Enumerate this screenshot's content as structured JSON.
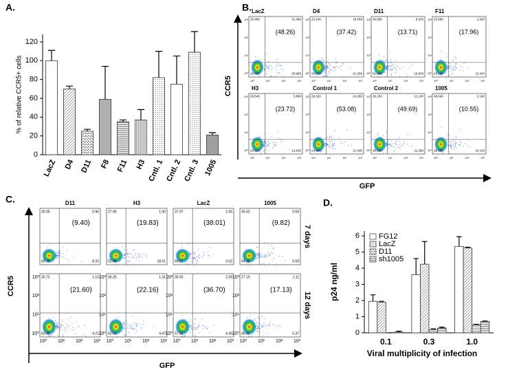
{
  "chart_data": [
    {
      "type": "bar",
      "title": "A.",
      "y_label": "% of relative CCR5+ cells",
      "categories": [
        "LacZ",
        "D4",
        "D11",
        "F8",
        "F11",
        "H3",
        "Cntl. 1",
        "Cntl. 2",
        "Cntl. 3",
        "1005"
      ],
      "values": [
        100,
        70,
        25,
        59,
        35,
        37,
        82,
        75,
        109,
        21
      ],
      "errors": [
        11,
        3,
        2,
        35,
        2,
        11,
        28,
        30,
        22,
        2.5
      ],
      "fills": [
        "#ffffff",
        "diag",
        "wave",
        "#b0b0b0",
        "hlines",
        "vlines",
        "dots",
        "#ffffff",
        "dots",
        "#a0a0a0"
      ],
      "ylim": [
        0,
        128
      ],
      "yticks": [
        0,
        20,
        40,
        60,
        80,
        100,
        120
      ]
    },
    {
      "type": "grouped-bar",
      "title": "D.",
      "y_label": "p24 ng/ml",
      "x_label": "Viral multiplicity of  infection",
      "categories": [
        "0.1",
        "0.3",
        "1.0"
      ],
      "series": [
        {
          "name": "FG12",
          "fill": "#ffffff",
          "values": [
            1.95,
            3.6,
            5.35
          ],
          "errors": [
            0.4,
            1.0,
            0.6
          ]
        },
        {
          "name": "LacZ",
          "fill": "diag",
          "values": [
            1.9,
            4.25,
            5.25
          ],
          "errors": [
            0.05,
            1.4,
            0.05
          ]
        },
        {
          "name": "D11",
          "fill": "wave",
          "values": [
            0,
            0.2,
            0.5
          ],
          "errors": [
            0,
            0.05,
            0.03
          ]
        },
        {
          "name": "sh1005",
          "fill": "hlines",
          "values": [
            0.05,
            0.3,
            0.7
          ],
          "errors": [
            0.05,
            0.05,
            0.03
          ]
        }
      ],
      "ylim": [
        0,
        6.3
      ],
      "yticks": [
        0,
        1,
        2,
        3,
        4,
        5,
        6
      ],
      "legend": "top-left"
    }
  ],
  "flow_panels": [
    {
      "title": "B.",
      "y_label": "CCR5",
      "x_label": "GFP",
      "tick_labels": [
        "10⁰",
        "10¹",
        "10²",
        "10³"
      ],
      "plots": [
        {
          "name": "LacZ",
          "percent": "(48.26)",
          "corners": [
            "15.480",
            "31.480",
            "18.480",
            "33.980"
          ]
        },
        {
          "name": "D4",
          "percent": "(37.42)",
          "corners": [
            "23.240",
            "18.669",
            "26.830",
            "31.269"
          ]
        },
        {
          "name": "D11",
          "percent": "(13.71)",
          "corners": [
            "26.580",
            "5.933",
            "51.940",
            "15.603"
          ]
        },
        {
          "name": "F11",
          "percent": "(17.96)",
          "corners": [
            "33.580",
            "2.920",
            "63.280",
            "13.340"
          ]
        },
        {
          "name": "H3",
          "percent": "(23.72)",
          "corners": [
            "28.540",
            "3.880",
            "43.620",
            "13.600"
          ]
        },
        {
          "name": "Control 1",
          "percent": "(53.08)",
          "corners": [
            "29.320",
            "24.280",
            "24.940",
            "21.400"
          ]
        },
        {
          "name": "Control 2",
          "percent": "(49.69)",
          "corners": [
            "28.200",
            "11.140",
            "39.180",
            "11.280"
          ]
        },
        {
          "name": "1005",
          "percent": "(10.55)",
          "corners": [
            "48.640",
            "2.140",
            "38.580",
            "10.103"
          ]
        }
      ]
    },
    {
      "title": "C.",
      "y_label": "CCR5",
      "x_label": "GFP",
      "tick_labels": [
        "10⁰",
        "10¹",
        "10²",
        "10³"
      ],
      "columns": [
        "D11",
        "H3",
        "LacZ",
        "1005"
      ],
      "rows": [
        {
          "label": "7 days",
          "plots": [
            {
              "percent": "(9.40)",
              "corners": [
                "30.05",
                "0.96",
                "60.79",
                "8.20"
              ]
            },
            {
              "percent": "(19.83)",
              "corners": [
                "27.99",
                "1.00",
                "52.99",
                "18.01"
              ]
            },
            {
              "percent": "(38.01)",
              "corners": [
                "37.97",
                "2.35",
                "59.07",
                "0.62"
              ]
            },
            {
              "percent": "(9.82)",
              "corners": [
                "35.62",
                "0.69",
                "54.48",
                "0.09"
              ]
            }
          ]
        },
        {
          "label": "12 days",
          "plots": [
            {
              "percent": "(21.60)",
              "corners": [
                "30.72",
                "1.16",
                "63.80",
                "4.21"
              ]
            },
            {
              "percent": "(22.16)",
              "corners": [
                "30.25",
                "1.31",
                "62.53",
                "4.47"
              ]
            },
            {
              "percent": "(36.70)",
              "corners": [
                "35.65",
                "2.58",
                "57.32",
                "4.45"
              ]
            },
            {
              "percent": "(17.13)",
              "corners": [
                "27.10",
                "1.11",
                "66.42",
                "5.37"
              ]
            }
          ]
        }
      ]
    }
  ]
}
